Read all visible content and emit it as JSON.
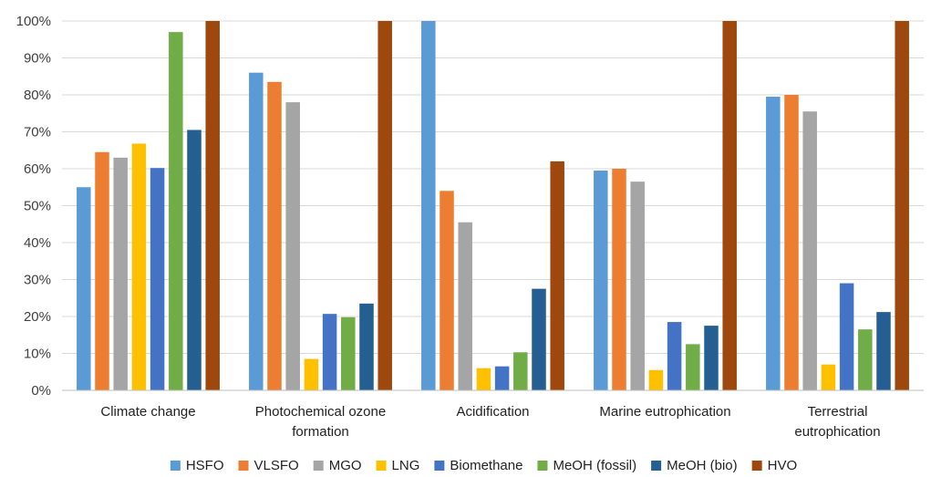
{
  "chart_data": {
    "type": "bar",
    "title": "",
    "xlabel": "",
    "ylabel": "",
    "ylim": [
      0,
      100
    ],
    "yticks": [
      "0%",
      "10%",
      "20%",
      "30%",
      "40%",
      "50%",
      "60%",
      "70%",
      "80%",
      "90%",
      "100%"
    ],
    "grid": "horizontal",
    "legend_position": "bottom",
    "categories": [
      [
        "Climate change"
      ],
      [
        "Photochemical ozone",
        "formation"
      ],
      [
        "Acidification"
      ],
      [
        "Marine eutrophication"
      ],
      [
        "Terrestrial",
        "eutrophication"
      ]
    ],
    "series": [
      {
        "name": "HSFO",
        "color": "#5b9bd5",
        "values": [
          55,
          86,
          100,
          59.5,
          79.5
        ]
      },
      {
        "name": "VLSFO",
        "color": "#ed7d31",
        "values": [
          64.5,
          83.5,
          54,
          60,
          80
        ]
      },
      {
        "name": "MGO",
        "color": "#a5a5a5",
        "values": [
          63,
          78,
          45.5,
          56.5,
          75.5
        ]
      },
      {
        "name": "LNG",
        "color": "#ffc000",
        "values": [
          66.8,
          8.5,
          6,
          5.5,
          7
        ]
      },
      {
        "name": "Biomethane",
        "color": "#4472c4",
        "values": [
          60.2,
          20.7,
          6.5,
          18.5,
          29
        ]
      },
      {
        "name": "MeOH (fossil)",
        "color": "#70ad47",
        "values": [
          97,
          19.8,
          10.3,
          12.5,
          16.5
        ]
      },
      {
        "name": "MeOH (bio)",
        "color": "#255e91",
        "values": [
          70.5,
          23.5,
          27.5,
          17.5,
          21.2
        ]
      },
      {
        "name": "HVO",
        "color": "#9e480e",
        "values": [
          100,
          100,
          62,
          100,
          100
        ]
      }
    ]
  }
}
